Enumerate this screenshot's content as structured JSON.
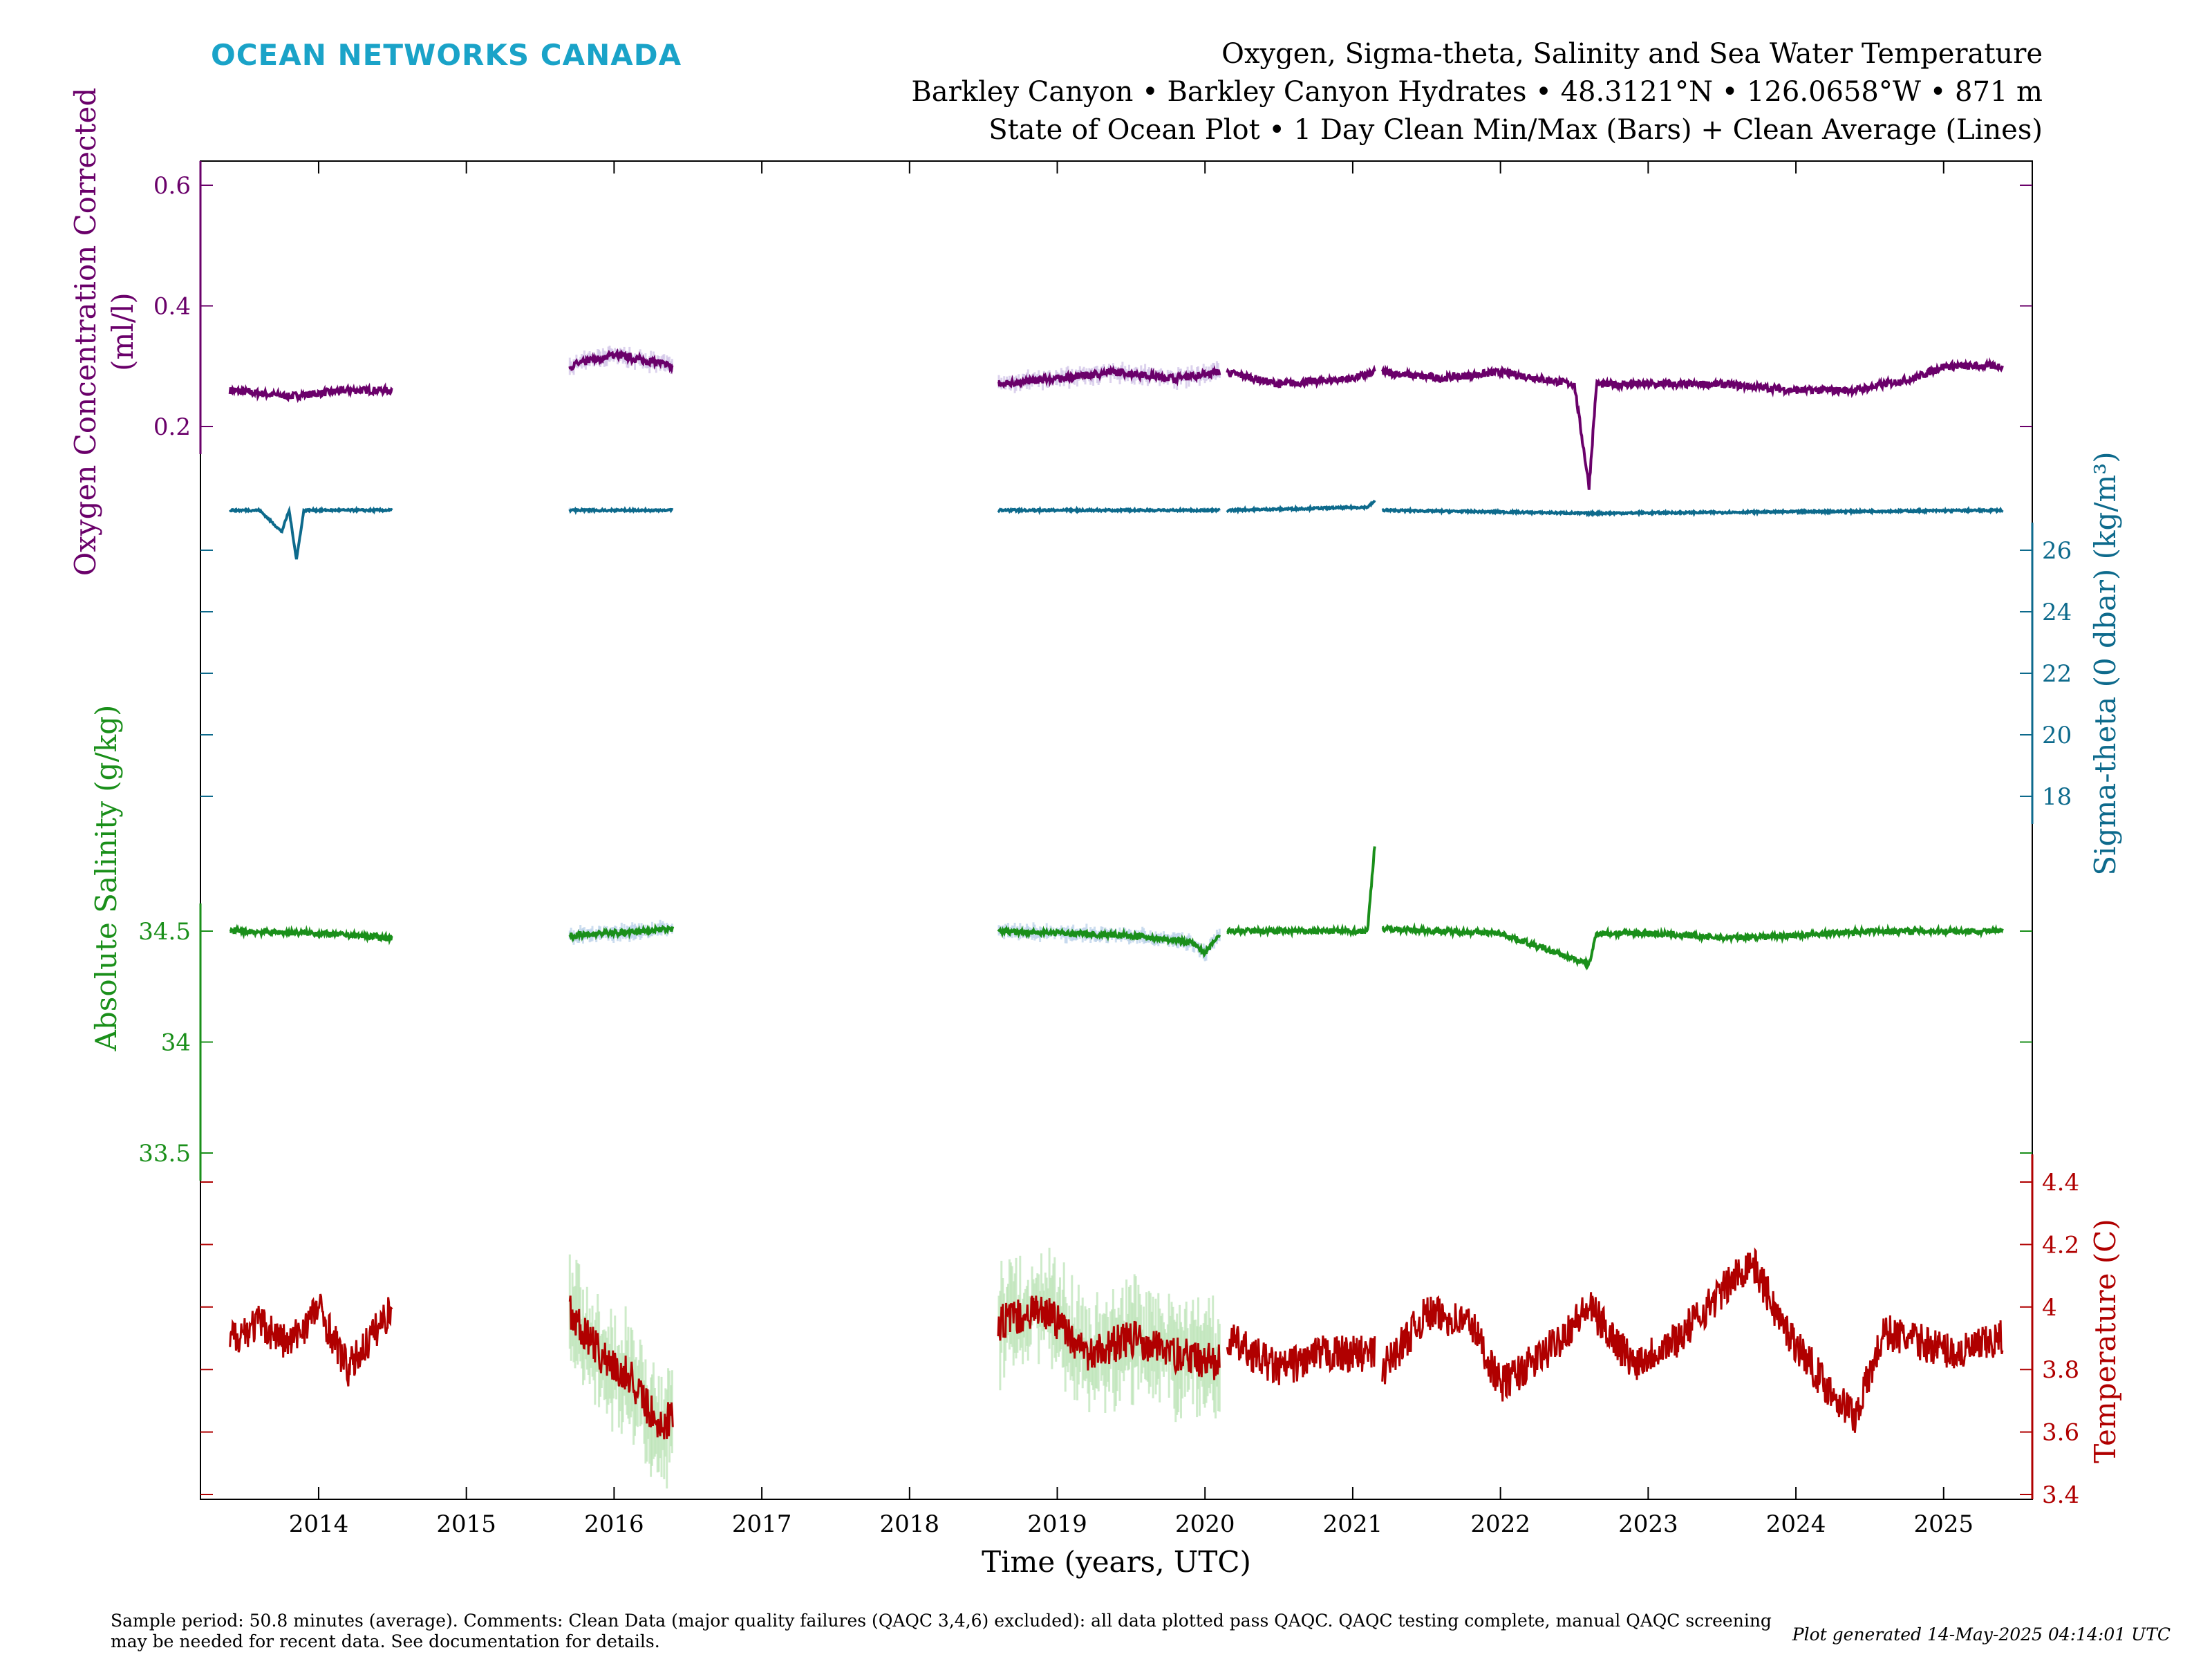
{
  "brand": "OCEAN NETWORKS CANADA",
  "title": {
    "line1": "Oxygen, Sigma-theta, Salinity and Sea Water Temperature",
    "line2": "Barkley Canyon • Barkley Canyon Hydrates • 48.3121°N • 126.0658°W • 871 m",
    "line3": "State of Ocean Plot • 1 Day Clean Min/Max (Bars) + Clean Average (Lines)"
  },
  "footer": {
    "left": "Sample period: 50.8 minutes (average). Comments: Clean Data (major quality failures (QAQC 3,4,6) excluded): all data plotted pass QAQC. QAQC testing complete, manual QAQC screening may be needed for recent data. See documentation for details.",
    "right": "Plot generated 14-May-2025 04:14:01 UTC"
  },
  "colors": {
    "oxygen": "#6a006a",
    "sigma": "#0d6a8c",
    "salinity": "#1a8f1a",
    "temperature": "#b00000",
    "minmax_blue": "#b7cfe8",
    "minmax_green": "#b9e3b3",
    "minmax_purple": "#cdbfe6"
  },
  "chart_data": {
    "type": "line",
    "xlabel": "Time (years, UTC)",
    "xlim": [
      2013.2,
      2025.6
    ],
    "x_ticks": [
      "2014",
      "2015",
      "2016",
      "2017",
      "2018",
      "2019",
      "2020",
      "2021",
      "2022",
      "2023",
      "2024",
      "2025"
    ],
    "segments": [
      [
        2013.4,
        2014.5
      ],
      [
        2015.7,
        2016.4
      ],
      [
        2018.6,
        2020.1
      ],
      [
        2020.15,
        2021.15
      ],
      [
        2021.2,
        2025.4
      ]
    ],
    "series": [
      {
        "key": "oxygen",
        "ylabel_line1": "Oxygen Concentration Corrected",
        "ylabel_line2": "(ml/l)",
        "axis": "left",
        "ticks": [
          "0.6",
          "0.4",
          "0.2"
        ],
        "tick_values": [
          0.6,
          0.4,
          0.2
        ],
        "points": [
          [
            2013.4,
            0.26
          ],
          [
            2013.8,
            0.25
          ],
          [
            2014.2,
            0.26
          ],
          [
            2014.5,
            0.26
          ],
          [
            2015.7,
            0.3
          ],
          [
            2016.0,
            0.32
          ],
          [
            2016.4,
            0.3
          ],
          [
            2018.6,
            0.27
          ],
          [
            2019.0,
            0.28
          ],
          [
            2019.4,
            0.29
          ],
          [
            2019.8,
            0.28
          ],
          [
            2020.1,
            0.29
          ],
          [
            2020.15,
            0.29
          ],
          [
            2020.5,
            0.27
          ],
          [
            2021.0,
            0.28
          ],
          [
            2021.15,
            0.29
          ],
          [
            2021.2,
            0.29
          ],
          [
            2021.6,
            0.28
          ],
          [
            2022.0,
            0.29
          ],
          [
            2022.5,
            0.27
          ],
          [
            2022.6,
            0.1
          ],
          [
            2022.65,
            0.27
          ],
          [
            2023.0,
            0.27
          ],
          [
            2023.5,
            0.27
          ],
          [
            2024.0,
            0.26
          ],
          [
            2024.4,
            0.26
          ],
          [
            2024.8,
            0.28
          ],
          [
            2025.0,
            0.3
          ],
          [
            2025.4,
            0.3
          ]
        ]
      },
      {
        "key": "sigma",
        "ylabel": "Sigma-theta (0 dbar) (kg/m³)",
        "axis": "right",
        "ticks": [
          "26",
          "24",
          "22",
          "20",
          "18"
        ],
        "tick_values": [
          26,
          24,
          22,
          20,
          18
        ],
        "points": [
          [
            2013.4,
            27.3
          ],
          [
            2013.6,
            27.3
          ],
          [
            2013.75,
            26.6
          ],
          [
            2013.8,
            27.3
          ],
          [
            2013.85,
            25.7
          ],
          [
            2013.9,
            27.3
          ],
          [
            2014.5,
            27.3
          ],
          [
            2015.7,
            27.3
          ],
          [
            2016.4,
            27.3
          ],
          [
            2018.6,
            27.3
          ],
          [
            2020.1,
            27.3
          ],
          [
            2020.15,
            27.3
          ],
          [
            2021.1,
            27.4
          ],
          [
            2021.15,
            27.6
          ],
          [
            2021.2,
            27.3
          ],
          [
            2022.6,
            27.2
          ],
          [
            2025.4,
            27.3
          ]
        ]
      },
      {
        "key": "salinity",
        "ylabel": "Absolute Salinity (g/kg)",
        "axis": "left",
        "ticks": [
          "34.5",
          "34",
          "33.5"
        ],
        "tick_values": [
          34.5,
          34.0,
          33.5
        ],
        "points": [
          [
            2013.4,
            34.5
          ],
          [
            2014.0,
            34.49
          ],
          [
            2014.5,
            34.47
          ],
          [
            2015.7,
            34.48
          ],
          [
            2016.4,
            34.51
          ],
          [
            2018.6,
            34.5
          ],
          [
            2019.5,
            34.48
          ],
          [
            2019.9,
            34.45
          ],
          [
            2020.0,
            34.4
          ],
          [
            2020.1,
            34.48
          ],
          [
            2020.15,
            34.5
          ],
          [
            2020.5,
            34.5
          ],
          [
            2021.1,
            34.5
          ],
          [
            2021.15,
            34.9
          ],
          [
            2021.2,
            34.51
          ],
          [
            2022.0,
            34.49
          ],
          [
            2022.6,
            34.35
          ],
          [
            2022.65,
            34.49
          ],
          [
            2023.0,
            34.49
          ],
          [
            2023.5,
            34.47
          ],
          [
            2024.0,
            34.48
          ],
          [
            2024.5,
            34.5
          ],
          [
            2025.4,
            34.5
          ]
        ]
      },
      {
        "key": "temperature",
        "ylabel": "Temperature (C)",
        "axis": "right",
        "ticks": [
          "4.4",
          "4.2",
          "4",
          "3.8",
          "3.6",
          "3.4"
        ],
        "tick_values": [
          4.4,
          4.2,
          4.0,
          3.8,
          3.6,
          3.4
        ],
        "points": [
          [
            2013.4,
            3.9
          ],
          [
            2013.6,
            3.95
          ],
          [
            2013.8,
            3.88
          ],
          [
            2014.0,
            4.0
          ],
          [
            2014.2,
            3.8
          ],
          [
            2014.5,
            4.0
          ],
          [
            2015.7,
            3.98
          ],
          [
            2015.9,
            3.85
          ],
          [
            2016.1,
            3.78
          ],
          [
            2016.3,
            3.62
          ],
          [
            2016.4,
            3.65
          ],
          [
            2018.6,
            3.95
          ],
          [
            2018.9,
            4.0
          ],
          [
            2019.2,
            3.85
          ],
          [
            2019.5,
            3.9
          ],
          [
            2019.8,
            3.85
          ],
          [
            2020.1,
            3.82
          ],
          [
            2020.15,
            3.9
          ],
          [
            2020.5,
            3.8
          ],
          [
            2020.8,
            3.85
          ],
          [
            2021.15,
            3.85
          ],
          [
            2021.2,
            3.8
          ],
          [
            2021.5,
            3.98
          ],
          [
            2021.8,
            3.95
          ],
          [
            2022.0,
            3.75
          ],
          [
            2022.3,
            3.85
          ],
          [
            2022.6,
            4.0
          ],
          [
            2022.9,
            3.82
          ],
          [
            2023.2,
            3.9
          ],
          [
            2023.5,
            4.05
          ],
          [
            2023.7,
            4.15
          ],
          [
            2023.9,
            3.95
          ],
          [
            2024.2,
            3.75
          ],
          [
            2024.4,
            3.65
          ],
          [
            2024.6,
            3.92
          ],
          [
            2024.9,
            3.88
          ],
          [
            2025.1,
            3.85
          ],
          [
            2025.4,
            3.9
          ]
        ]
      }
    ]
  }
}
